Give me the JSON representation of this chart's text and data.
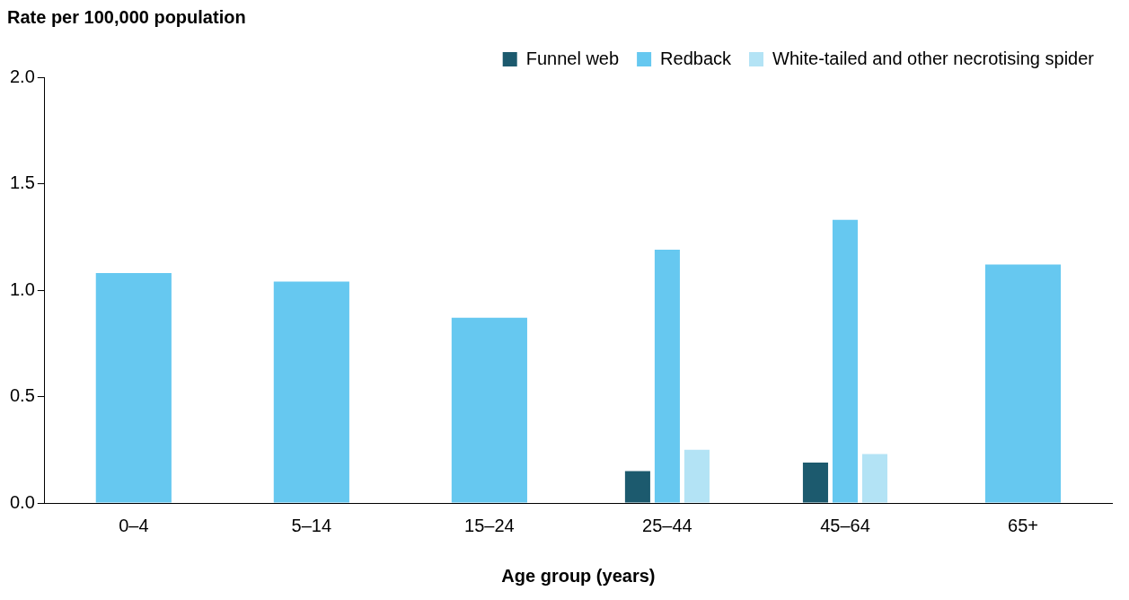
{
  "chart_data": {
    "type": "bar",
    "ylabel": "Rate per 100,000 population",
    "xlabel": "Age group (years)",
    "categories": [
      "0–4",
      "5–14",
      "15–24",
      "25–44",
      "45–64",
      "65+"
    ],
    "series": [
      {
        "name": "Funnel web",
        "color": "#1c5a6e",
        "values": [
          null,
          null,
          null,
          0.15,
          0.19,
          null
        ]
      },
      {
        "name": "Redback",
        "color": "#66c8f0",
        "values": [
          1.08,
          1.04,
          0.87,
          1.19,
          1.33,
          1.12
        ]
      },
      {
        "name": "White-tailed and other necrotising spider",
        "color": "#b3e3f5",
        "values": [
          null,
          null,
          null,
          0.25,
          0.23,
          null
        ]
      }
    ],
    "ylim": [
      0,
      2
    ],
    "yticks": [
      {
        "value": 0,
        "label": "0.0"
      },
      {
        "value": 0.5,
        "label": "0.5"
      },
      {
        "value": 1,
        "label": "1.0"
      },
      {
        "value": 1.5,
        "label": "1.5"
      },
      {
        "value": 2,
        "label": "2.0"
      }
    ],
    "grid": false,
    "legend": "top right"
  }
}
